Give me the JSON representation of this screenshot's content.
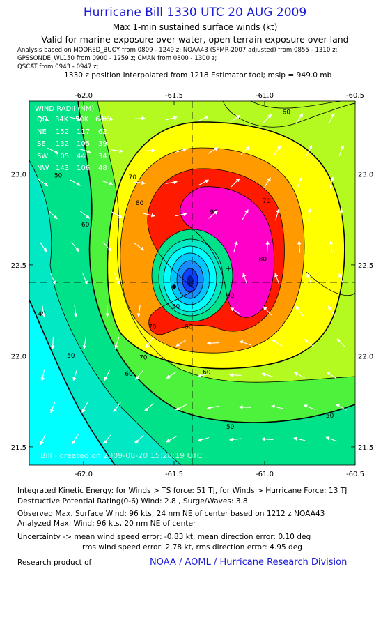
{
  "header": {
    "title": "Hurricane Bill 1330 UTC 20 AUG 2009",
    "subtitle": "Max 1-min sustained surface winds (kt)",
    "valid_note": "Valid for marine exposure over water, open terrain exposure over land",
    "analysis_line1": "Analysis based on   MOORED_BUOY from 0809 - 1249 z;   NOAA43 (SFMR-2007 adjusted) from 0855 - 1310 z;",
    "analysis_line2": "GPSSONDE_WL150 from 0900 - 1259 z;   CMAN from 0800 - 1300 z;",
    "analysis_line3": "QSCAT from 0943 - 0947 z;",
    "position_note": "1330 z position interpolated from 1218 Estimator tool; mslp = 949.0 mb"
  },
  "wind_radii": {
    "heading": "WIND RADII (NM)",
    "columns": [
      "QD",
      "34K",
      "50K",
      "64K"
    ],
    "rows": [
      [
        "NE",
        "152",
        "117",
        "62"
      ],
      [
        "SE",
        "132",
        "105",
        "39"
      ],
      [
        "SW",
        "105",
        "44",
        "34"
      ],
      [
        "NW",
        "143",
        "106",
        "48"
      ]
    ]
  },
  "plot_credit": "Bill - created on 2009-08-20 15:28:19 UTC",
  "footer": {
    "ike": "Integrated Kinetic Energy:  for Winds > TS force: 51 TJ,  for Winds > Hurricane Force: 13 TJ",
    "dpr": "Destructive Potential Rating(0-6)   Wind: 2.8 , Surge/Waves: 3.8",
    "observed": "Observed Max. Surface Wind: 96 kts, 24 nm NE of center based on 1212 z NOAA43",
    "analyzed": "Analyzed Max. Wind: 96 kts, 20 nm NE of center",
    "uncert1": "Uncertainty -> mean wind speed error:  -0.83 kt,   mean direction error: 0.10 deg",
    "uncert2": "rms wind speed error: 2.78 kt,   rms direction error: 4.95 deg",
    "research": "Research product of",
    "org_link": "NOAA / AOML / Hurricane Research Division"
  },
  "colors": {
    "title": "#1a1ad6",
    "cyan_lt35": "#00ffff",
    "teal_35_40": "#00e8c4",
    "green_40_50": "#00e28a",
    "ltgreen_50_60": "#4cf23c",
    "chartreuse_60_64": "#b4fa20",
    "yellow_64_70": "#ffff00",
    "orange_70_80": "#ff9a00",
    "red_80_90": "#ff1a00",
    "magenta_90plus": "#ff00c8",
    "eye_blue": "#1040ff"
  },
  "chart_data": {
    "type": "heatmap",
    "title": "Max 1-min sustained surface winds (kt)",
    "xlim": [
      -62.3,
      -60.5
    ],
    "ylim": [
      21.4,
      23.4
    ],
    "x_ticks": [
      "-62.0",
      "-61.5",
      "-61.0",
      "-60.5"
    ],
    "y_ticks": [
      "21.5",
      "22.0",
      "22.5",
      "23.0"
    ],
    "center": {
      "lon": -61.5,
      "lat": 22.38
    },
    "max_wind_point": {
      "lon": -61.2,
      "lat": 22.48
    },
    "contour_labels": [
      {
        "text": "50",
        "lon": -62.14,
        "lat": 22.98
      },
      {
        "text": "60",
        "lon": -61.99,
        "lat": 22.71
      },
      {
        "text": "40",
        "lon": -62.23,
        "lat": 22.22
      },
      {
        "text": "50",
        "lon": -62.07,
        "lat": 21.99
      },
      {
        "text": "60",
        "lon": -61.75,
        "lat": 21.89
      },
      {
        "text": "70",
        "lon": -61.67,
        "lat": 21.98
      },
      {
        "text": "60",
        "lon": -61.32,
        "lat": 21.9
      },
      {
        "text": "50",
        "lon": -61.19,
        "lat": 21.6
      },
      {
        "text": "50",
        "lon": -60.64,
        "lat": 21.66
      },
      {
        "text": "60",
        "lon": -60.88,
        "lat": 23.33
      },
      {
        "text": "70",
        "lon": -61.73,
        "lat": 22.97
      },
      {
        "text": "80",
        "lon": -61.69,
        "lat": 22.83
      },
      {
        "text": "70",
        "lon": -60.99,
        "lat": 22.84
      },
      {
        "text": "90",
        "lon": -61.28,
        "lat": 22.78
      },
      {
        "text": "80",
        "lon": -61.01,
        "lat": 22.52
      },
      {
        "text": "90",
        "lon": -61.19,
        "lat": 22.32
      },
      {
        "text": "80",
        "lon": -61.42,
        "lat": 22.15
      },
      {
        "text": "70",
        "lon": -61.62,
        "lat": 22.15
      },
      {
        "text": "50",
        "lon": -61.49,
        "lat": 22.26
      }
    ]
  }
}
